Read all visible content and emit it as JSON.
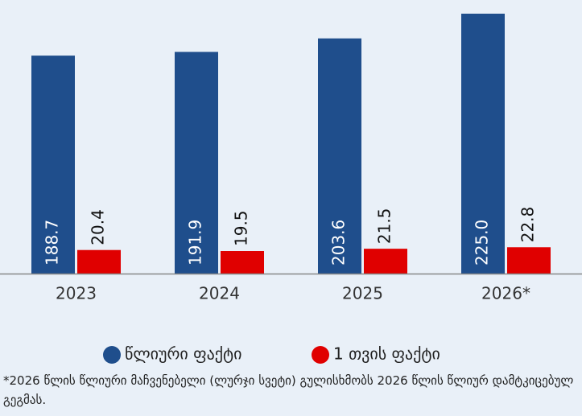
{
  "chart_data": {
    "type": "bar",
    "categories": [
      "2023",
      "2024",
      "2025",
      "2026*"
    ],
    "series": [
      {
        "name": "წლიური ფაქტი",
        "color": "#1f4e8c",
        "values": [
          188.7,
          191.9,
          203.6,
          225.0
        ],
        "value_labels": [
          "188.7",
          "191.9",
          "203.6",
          "225.0"
        ]
      },
      {
        "name": "1 თვის ფაქტი",
        "color": "#e00000",
        "values": [
          20.4,
          19.5,
          21.5,
          22.8
        ]
      }
    ],
    "ylim": [
      0,
      225
    ],
    "legend": "bottom",
    "note": "*2026 წლის წლიური მაჩვენებელი (ლურჯი სვეტი) გულისხმობს 2026 წლის წლიურ დამტკიცებულ გეგმას."
  }
}
